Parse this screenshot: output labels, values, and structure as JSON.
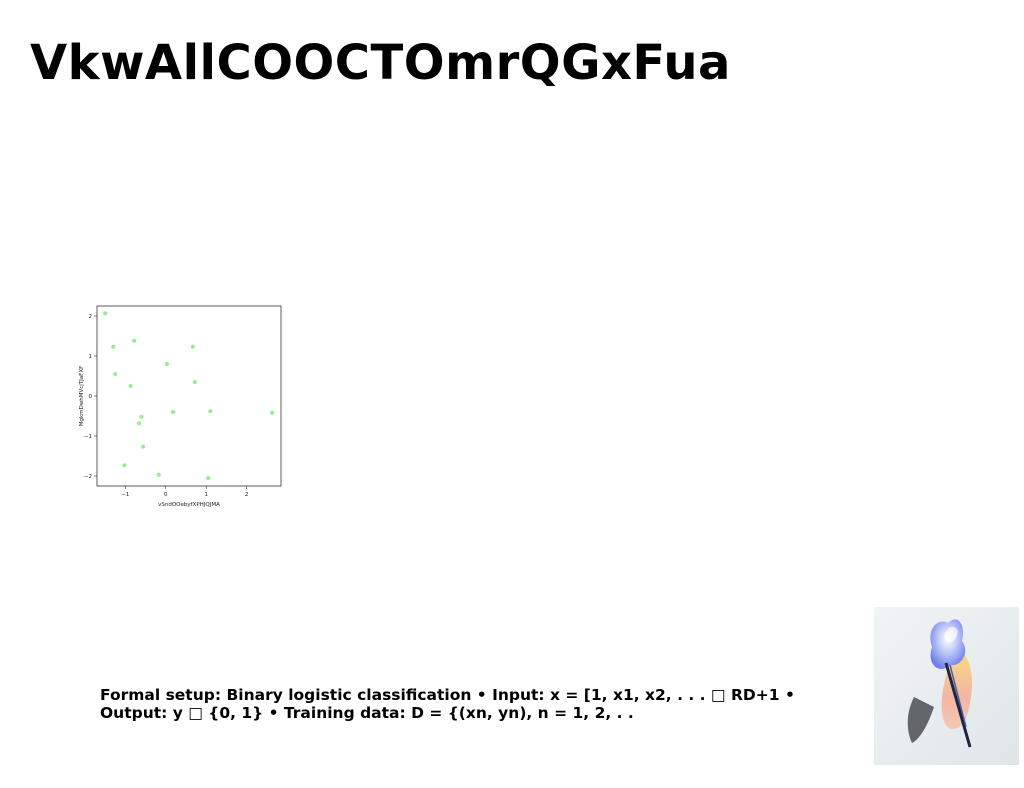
{
  "slide": {
    "title": "VkwAllCOOCTOmrQGxFua",
    "caption": "Formal setup: Binary logistic classification • Input: x = [1, x1, x2, . . . □ RD+1 • Output: y □ {0, 1} • Training data: D = {(xn, yn), n = 1, 2, . ."
  },
  "photo": {
    "icon": "paintbrush-photo-icon"
  },
  "chart_data": {
    "type": "scatter",
    "title": "",
    "xlabel": "vSndOOebyfXPHJQJMA",
    "ylabel": "MgkmDwhMVcjTJaFXF",
    "xlim": [
      -1.7,
      2.85
    ],
    "ylim": [
      -2.25,
      2.25
    ],
    "xticks": [
      -1,
      0,
      1,
      2
    ],
    "yticks": [
      2,
      1,
      0,
      -1,
      -2
    ],
    "grid": false,
    "legend": "none",
    "marker_color": "#90ee90",
    "series": [
      {
        "x": [
          -1.5,
          -1.3,
          -1.25,
          -0.78,
          -0.87,
          -0.66,
          -0.6,
          -0.56,
          -1.02,
          -0.17,
          0.03,
          0.18,
          0.67,
          0.72,
          1.1,
          1.05,
          2.63
        ],
        "y": [
          2.07,
          1.23,
          0.55,
          1.38,
          0.25,
          -0.68,
          -0.52,
          -1.27,
          -1.73,
          -1.97,
          0.8,
          -0.4,
          1.23,
          0.35,
          -0.38,
          -2.05,
          -0.42
        ]
      }
    ]
  }
}
